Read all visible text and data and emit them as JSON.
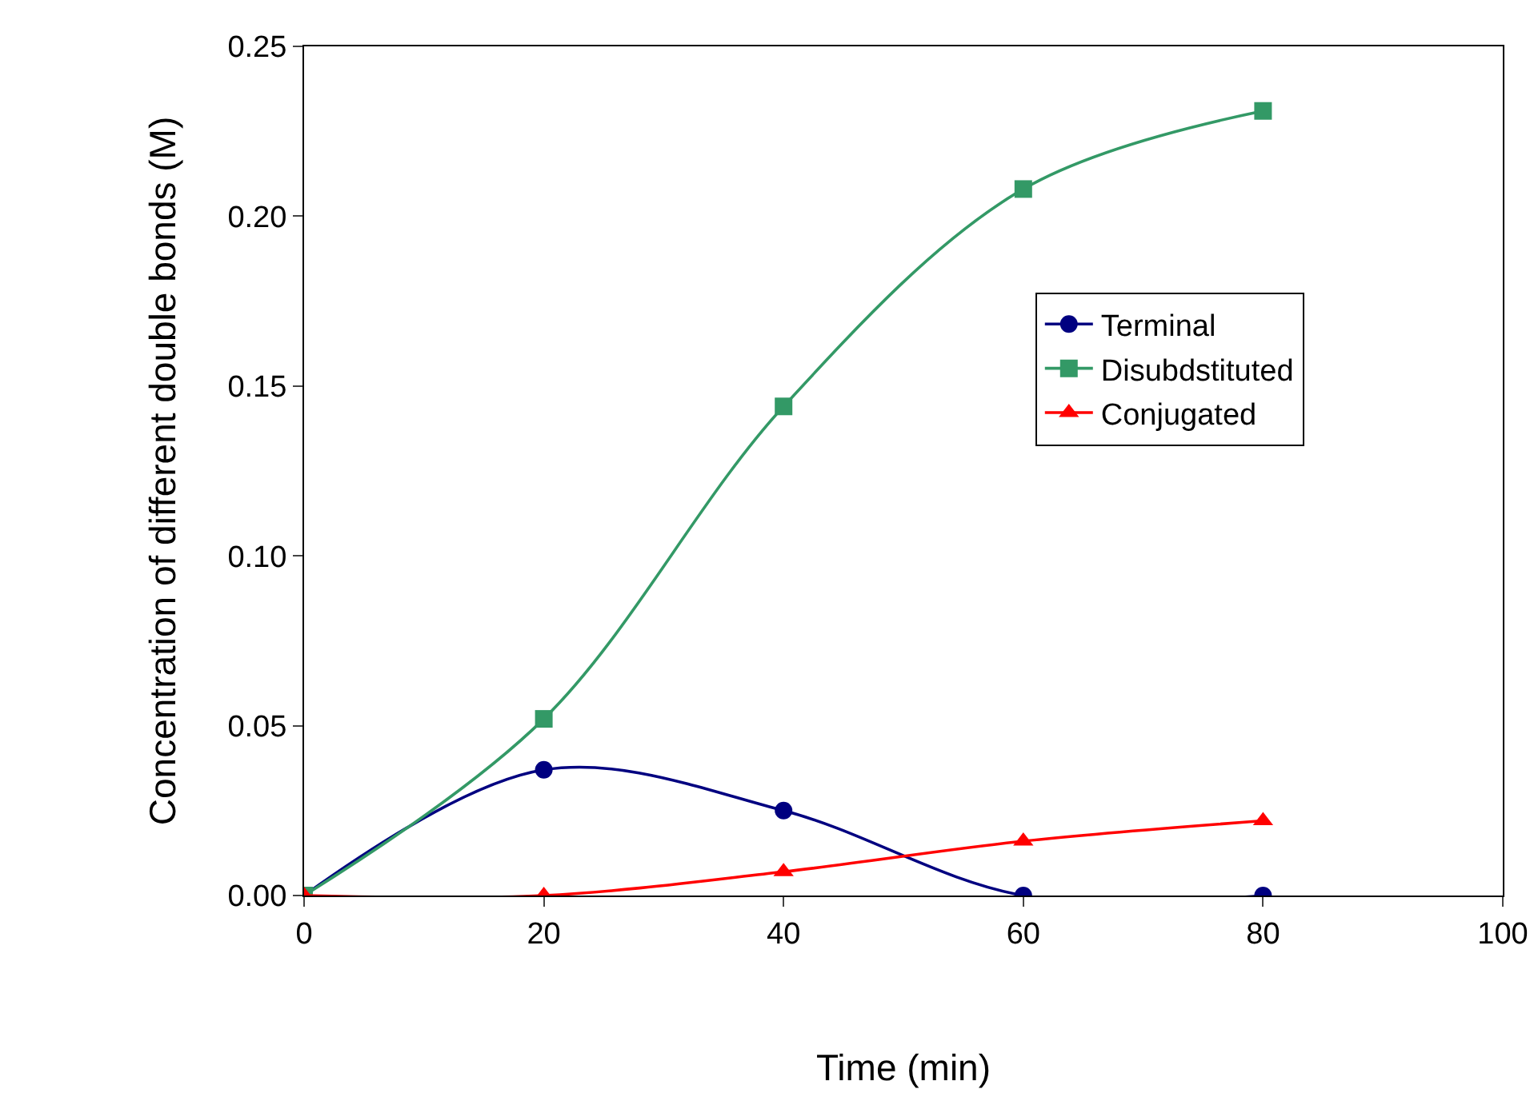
{
  "chart_data": {
    "type": "line",
    "xlabel": "Time (min)",
    "ylabel": "Concentration of different double bonds (M)",
    "x": [
      0,
      20,
      40,
      60,
      80
    ],
    "series": [
      {
        "name": "Terminal",
        "color": "#000080",
        "marker": "circle",
        "values": [
          0,
          0.037,
          0.025,
          0,
          0
        ]
      },
      {
        "name": "Disubdstituted",
        "color": "#339966",
        "marker": "square",
        "values": [
          0,
          0.052,
          0.144,
          0.208,
          0.231
        ]
      },
      {
        "name": "Conjugated",
        "color": "#ff0000",
        "marker": "triangle",
        "values": [
          0,
          0,
          0.007,
          0.016,
          0.022
        ]
      }
    ],
    "xlim": [
      0,
      100
    ],
    "xticks": [
      0,
      20,
      40,
      60,
      80,
      100
    ],
    "ylim": [
      0,
      0.25
    ],
    "yticks": [
      {
        "value": 0,
        "label": "0.00"
      },
      {
        "value": 0.05,
        "label": "0.05"
      },
      {
        "value": 0.1,
        "label": "0.10"
      },
      {
        "value": 0.15,
        "label": "0.15"
      },
      {
        "value": 0.2,
        "label": "0.20"
      },
      {
        "value": 0.25,
        "label": "0.25"
      }
    ],
    "grid": false,
    "legend": "right",
    "line_style": "solid"
  }
}
